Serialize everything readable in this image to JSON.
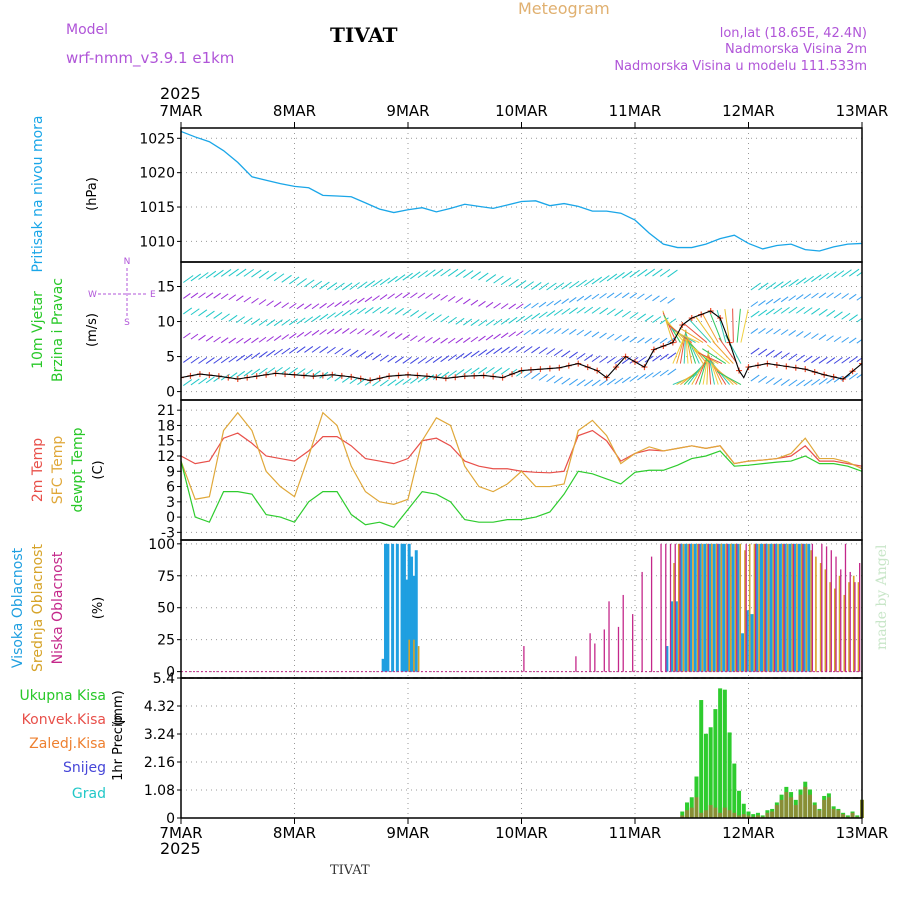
{
  "header": {
    "model_label": "Model",
    "station": "TIVAT",
    "meteogram": "Meteogram",
    "model_name": "wrf-nmm_v3.9.1  e1km",
    "coords": "lon,lat (18.65E, 42.4N)",
    "elevation": "Nadmorska Visina 2m",
    "model_elevation": "Nadmorska Visina u modelu 111.533m",
    "year_top": "2025",
    "year_bottom": "2025",
    "footer_station": "TIVAT",
    "credit": "made by Angel"
  },
  "colors": {
    "pressure": "#1aa6e8",
    "temp2m": "#e8504a",
    "sfc": "#e0a83a",
    "dew": "#2ecc2e",
    "high_cloud": "#1f9fe0",
    "mid_cloud": "#d6a328",
    "low_cloud": "#c4288a",
    "snow": "#4646d8",
    "hail": "#22c8c8",
    "windlabel": "#28c828",
    "conv": "#e8504a",
    "frz": "#ee8030",
    "purple": "#b055d8"
  },
  "chart_data": [
    {
      "panel": "pressure",
      "type": "line",
      "ylabel": [
        "Pritisak na nivou mora",
        "(hPa)"
      ],
      "yticks": [
        1010,
        1015,
        1020,
        1025
      ],
      "ylim": [
        1007,
        1026.5
      ],
      "x_start": "2025-03-07 00:00",
      "x_end": "2025-03-13 00:00",
      "xticks": [
        "7MAR",
        "8MAR",
        "9MAR",
        "10MAR",
        "11MAR",
        "12MAR",
        "13MAR"
      ],
      "grid": true,
      "series": [
        {
          "key": "pressure",
          "hours": [
            0,
            3,
            6,
            9,
            12,
            15,
            18,
            21,
            24,
            27,
            30,
            33,
            36,
            39,
            42,
            45,
            48,
            51,
            54,
            57,
            60,
            63,
            66,
            69,
            72,
            75,
            78,
            81,
            84,
            87,
            90,
            93,
            96,
            99,
            102,
            105,
            108,
            111,
            114,
            117,
            120,
            123,
            126,
            129,
            132,
            135,
            138,
            141,
            144
          ],
          "values": [
            1026,
            1025.2,
            1024.5,
            1023.2,
            1021.5,
            1019.4,
            1018.9,
            1018.4,
            1018,
            1017.8,
            1016.7,
            1016.6,
            1016.5,
            1015.6,
            1014.7,
            1014.2,
            1014.6,
            1014.9,
            1014.3,
            1014.8,
            1015.4,
            1015.1,
            1014.8,
            1015.3,
            1015.8,
            1015.9,
            1015.2,
            1015.5,
            1015.1,
            1014.4,
            1014.4,
            1014.1,
            1013.1,
            1011.2,
            1009.6,
            1009.1,
            1009.1,
            1009.6,
            1010.4,
            1010.9,
            1009.7,
            1008.9,
            1009.4,
            1009.6,
            1008.8,
            1008.6,
            1009.2,
            1009.6,
            1009.7
          ]
        }
      ]
    },
    {
      "panel": "wind",
      "type": "line",
      "ylabel": [
        "10m Vjetar",
        "Brzina i Pravac",
        "(m/s)"
      ],
      "compass": [
        "N",
        "W",
        "E",
        "S"
      ],
      "yticks": [
        0,
        5,
        10,
        15
      ],
      "ylim": [
        -1.2,
        18.5
      ],
      "x_start": "2025-03-07 00:00",
      "x_end": "2025-03-13 00:00",
      "grid": true,
      "series": [
        {
          "key": "wind_speed",
          "hours": [
            0,
            4,
            8,
            12,
            16,
            20,
            24,
            28,
            32,
            36,
            40,
            44,
            48,
            52,
            56,
            60,
            64,
            68,
            72,
            76,
            80,
            84,
            88,
            90,
            94,
            98,
            100,
            104,
            106,
            108,
            112,
            114,
            116,
            118,
            119,
            120,
            124,
            128,
            132,
            136,
            140,
            144
          ],
          "values": [
            2,
            2.5,
            2.2,
            1.8,
            2.2,
            2.6,
            2.4,
            2.2,
            2.4,
            2.1,
            1.6,
            2.2,
            2.4,
            2.2,
            1.9,
            2.2,
            2.3,
            2,
            3,
            3.2,
            3.4,
            4,
            3,
            2,
            5,
            3.5,
            6,
            7,
            9.5,
            10.5,
            11.5,
            10.5,
            7,
            3,
            2,
            3.5,
            4,
            3.6,
            3.2,
            2.4,
            1.8,
            4
          ]
        }
      ]
    },
    {
      "panel": "temperature",
      "type": "line",
      "ylabel": [
        "2m Temp",
        "SFC Temp",
        "dewpt Temp",
        "(C)"
      ],
      "yticks": [
        -3,
        0,
        3,
        6,
        9,
        12,
        15,
        18,
        21
      ],
      "ylim": [
        -4.5,
        23
      ],
      "x_start": "2025-03-07 00:00",
      "x_end": "2025-03-13 00:00",
      "grid": true,
      "series": [
        {
          "key": "temp2m",
          "hours": [
            0,
            3,
            6,
            9,
            12,
            15,
            18,
            21,
            24,
            27,
            30,
            33,
            36,
            39,
            42,
            45,
            48,
            51,
            54,
            57,
            60,
            63,
            66,
            69,
            72,
            75,
            78,
            81,
            84,
            87,
            90,
            93,
            96,
            99,
            102,
            105,
            108,
            111,
            114,
            117,
            120,
            123,
            126,
            129,
            132,
            135,
            138,
            141,
            144
          ],
          "values": [
            12,
            10.5,
            11,
            15.5,
            16.5,
            14.5,
            12,
            11.5,
            11,
            13,
            15.8,
            15.8,
            14,
            11.5,
            11,
            10.5,
            11.5,
            15,
            15.5,
            14,
            11,
            10,
            9.5,
            9.5,
            9,
            8.8,
            8.7,
            9,
            16,
            17,
            15,
            11,
            12.5,
            13.2,
            13,
            13.5,
            14,
            13.5,
            14,
            10.5,
            11,
            11.2,
            11.5,
            12,
            14,
            11,
            11,
            10.5,
            10
          ]
        },
        {
          "key": "sfc",
          "hours": [
            0,
            3,
            6,
            9,
            12,
            15,
            18,
            21,
            24,
            27,
            30,
            33,
            36,
            39,
            42,
            45,
            48,
            51,
            54,
            57,
            60,
            63,
            66,
            69,
            72,
            75,
            78,
            81,
            84,
            87,
            90,
            93,
            96,
            99,
            102,
            105,
            108,
            111,
            114,
            117,
            120,
            123,
            126,
            129,
            132,
            135,
            138,
            141,
            144
          ],
          "values": [
            11,
            3.5,
            4,
            17,
            20.5,
            17,
            9,
            6,
            4,
            12,
            20.5,
            18,
            10,
            5,
            3,
            2.5,
            3.5,
            15,
            19.5,
            18,
            10,
            6,
            5,
            6.5,
            9,
            6,
            6,
            6.5,
            17,
            19,
            16,
            10.5,
            12.5,
            13.8,
            13,
            13.5,
            14,
            13.5,
            14,
            10.5,
            11,
            11.2,
            11.5,
            12.5,
            15.5,
            11.5,
            11.5,
            10.8,
            9.5
          ]
        },
        {
          "key": "dew",
          "hours": [
            0,
            3,
            6,
            9,
            12,
            15,
            18,
            21,
            24,
            27,
            30,
            33,
            36,
            39,
            42,
            45,
            48,
            51,
            54,
            57,
            60,
            63,
            66,
            69,
            72,
            75,
            78,
            81,
            84,
            87,
            90,
            93,
            96,
            99,
            102,
            105,
            108,
            111,
            114,
            117,
            120,
            123,
            126,
            129,
            132,
            135,
            138,
            141,
            144
          ],
          "values": [
            11,
            0,
            -1,
            5,
            5,
            4.5,
            0.5,
            0,
            -1,
            3,
            5,
            5,
            0.5,
            -1.5,
            -1,
            -2,
            1.5,
            5,
            4.5,
            3,
            -0.5,
            -1,
            -1,
            -0.5,
            -0.5,
            0,
            1,
            4.5,
            9,
            8.5,
            7.5,
            6.5,
            8.8,
            9.2,
            9.2,
            10.2,
            11.5,
            12,
            13,
            10,
            10.2,
            10.5,
            10.8,
            11,
            12,
            10.5,
            10.5,
            10,
            9
          ]
        }
      ]
    },
    {
      "panel": "cloud",
      "type": "bar",
      "ylabel": [
        "Visoka Oblacnost",
        "Srednja Oblacnost",
        "Niska Oblacnost",
        "(%)"
      ],
      "yticks": [
        0,
        25,
        50,
        75,
        100
      ],
      "ylim": [
        -5,
        103
      ],
      "x_start": "2025-03-07 00:00",
      "x_end": "2025-03-13 00:00",
      "grid": true,
      "series": [
        {
          "key": "high",
          "hours": [
            43,
            43.5,
            44,
            45,
            46,
            47,
            47.5,
            48,
            48.5,
            49,
            49.5,
            50,
            103,
            104,
            105,
            106,
            107,
            108,
            109,
            110,
            111,
            112,
            113,
            114,
            115,
            116,
            117,
            118,
            119,
            120,
            121,
            122,
            123,
            124,
            125,
            126,
            127,
            128,
            129,
            130,
            131,
            132,
            133
          ],
          "values": [
            10,
            100,
            100,
            100,
            100,
            100,
            100,
            72,
            100,
            90,
            75,
            95,
            20,
            55,
            55,
            100,
            100,
            100,
            100,
            100,
            100,
            100,
            100,
            100,
            100,
            100,
            100,
            100,
            30,
            48,
            45,
            100,
            100,
            100,
            100,
            100,
            100,
            100,
            100,
            100,
            100,
            100,
            100
          ]
        },
        {
          "key": "mid",
          "hours": [
            48,
            49,
            50,
            104,
            105,
            106,
            107,
            108,
            109,
            110,
            111,
            112,
            113,
            114,
            115,
            116,
            117,
            118,
            119,
            120,
            121,
            122,
            123,
            124,
            125,
            126,
            127,
            128,
            129,
            130,
            131,
            132,
            133,
            134,
            135,
            136,
            137,
            138,
            139,
            140,
            141,
            142,
            143
          ],
          "values": [
            25,
            25,
            20,
            85,
            100,
            100,
            100,
            100,
            100,
            100,
            100,
            100,
            100,
            100,
            100,
            100,
            100,
            100,
            95,
            100,
            100,
            100,
            100,
            100,
            100,
            100,
            100,
            100,
            100,
            100,
            100,
            100,
            95,
            90,
            85,
            80,
            70,
            65,
            75,
            60,
            70,
            75,
            70
          ]
        },
        {
          "key": "low",
          "hours": [
            72,
            83,
            86,
            87,
            89,
            90,
            92,
            93,
            95,
            97,
            99,
            101,
            102,
            103,
            104,
            105,
            107,
            109,
            111,
            113,
            115,
            117,
            119,
            121,
            123,
            125,
            127,
            129,
            131,
            133,
            135,
            136,
            137,
            138,
            139,
            140,
            141,
            142,
            143
          ],
          "values": [
            20,
            12,
            30,
            22,
            33,
            55,
            35,
            60,
            45,
            78,
            90,
            100,
            100,
            100,
            100,
            100,
            100,
            100,
            100,
            100,
            100,
            100,
            100,
            100,
            100,
            100,
            100,
            100,
            100,
            100,
            100,
            98,
            95,
            90,
            80,
            100,
            78,
            70,
            85
          ]
        }
      ]
    },
    {
      "panel": "precip",
      "type": "bar",
      "ylabel": [
        "1hr Precip",
        "(mm)"
      ],
      "legend": [
        "Ukupna Kisa",
        "Konvek.Kisa",
        "Zaledj.Kisa",
        "Snijeg",
        "Grad"
      ],
      "yticks": [
        0,
        1.08,
        2.16,
        3.24,
        4.32,
        5.4
      ],
      "ylim": [
        0,
        5.4
      ],
      "x_start": "2025-03-07 00:00",
      "x_end": "2025-03-13 00:00",
      "grid": true,
      "series": [
        {
          "key": "total_rain",
          "hours": [
            106,
            107,
            108,
            109,
            110,
            111,
            112,
            113,
            114,
            115,
            116,
            117,
            118,
            119,
            120,
            121,
            122,
            123,
            124,
            125,
            126,
            127,
            128,
            129,
            130,
            131,
            132,
            133,
            134,
            135,
            136,
            137,
            138,
            139,
            140,
            141,
            142,
            143,
            144
          ],
          "values": [
            0.25,
            0.6,
            0.8,
            1.6,
            4.55,
            3.25,
            3.5,
            4.2,
            5.0,
            4.95,
            3.3,
            2.1,
            1.05,
            0.55,
            0.25,
            0.15,
            0.2,
            0.1,
            0.3,
            0.35,
            0.6,
            0.9,
            1.2,
            1.0,
            0.7,
            1.1,
            1.4,
            1.1,
            0.6,
            0.35,
            0.85,
            0.95,
            0.45,
            0.35,
            0.2,
            0.1,
            0.25,
            0.1,
            0.7
          ]
        },
        {
          "key": "conv_rain",
          "hours": [
            106,
            107,
            108,
            109,
            110,
            111,
            112,
            113,
            114,
            115,
            116,
            117,
            118,
            119,
            120,
            121,
            122,
            123,
            124,
            125,
            126,
            127,
            128,
            129,
            130,
            131,
            132,
            133,
            134,
            135,
            136,
            137,
            138,
            139,
            140,
            141,
            142,
            143,
            144
          ],
          "values": [
            0.1,
            0.3,
            0.4,
            0.8,
            0.2,
            0.3,
            0.5,
            0.4,
            0.2,
            0.4,
            0.3,
            0.2,
            0.1,
            0.15,
            0.1,
            0.05,
            0.1,
            0.05,
            0.2,
            0.25,
            0.5,
            0.7,
            1.0,
            0.8,
            0.5,
            0.9,
            1.2,
            0.9,
            0.5,
            0.3,
            0.7,
            0.8,
            0.35,
            0.3,
            0.15,
            0.05,
            0.2,
            0.05,
            1.0
          ]
        }
      ]
    }
  ]
}
